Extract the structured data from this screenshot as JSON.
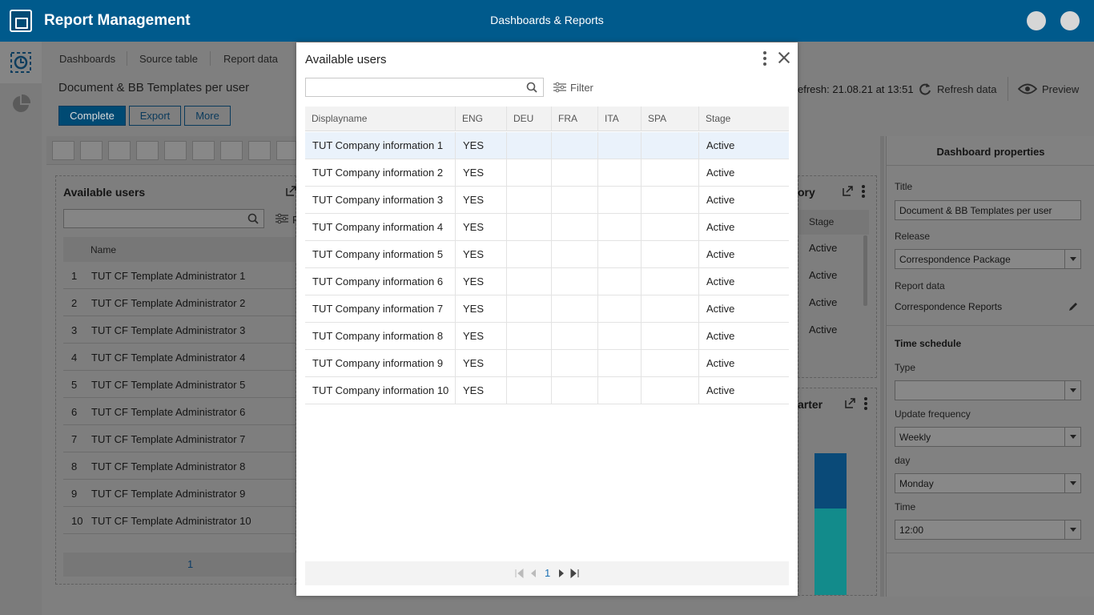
{
  "app": {
    "title": "Report Management",
    "center_title": "Dashboards & Reports"
  },
  "tabs": [
    "Dashboards",
    "Source table",
    "Report data"
  ],
  "document": {
    "title": "Document & BB Templates per user",
    "buttons": {
      "complete": "Complete",
      "export": "Export",
      "more": "More"
    },
    "last_refresh": "efresh: 21.08.21 at 13:51",
    "refresh_label": "Refresh data",
    "preview_label": "Preview"
  },
  "bg_panel": {
    "title": "Available users",
    "filter_partial": "F",
    "name_header": "Name",
    "rows": [
      {
        "num": "1",
        "name": "TUT CF Template Administrator 1"
      },
      {
        "num": "2",
        "name": "TUT CF Template Administrator 2"
      },
      {
        "num": "3",
        "name": "TUT CF Template Administrator 3"
      },
      {
        "num": "4",
        "name": "TUT CF Template Administrator 4"
      },
      {
        "num": "5",
        "name": "TUT CF Template Administrator 5"
      },
      {
        "num": "6",
        "name": "TUT CF Template Administrator 6"
      },
      {
        "num": "7",
        "name": "TUT CF Template Administrator 7"
      },
      {
        "num": "8",
        "name": "TUT CF Template Administrator 8"
      },
      {
        "num": "9",
        "name": "TUT CF Template Administrator 9"
      },
      {
        "num": "10",
        "name": "TUT CF Template Administrator 10"
      }
    ],
    "page": "1"
  },
  "bg_right": {
    "title_partial_1": "ory",
    "stage_header": "Stage",
    "stage_values": [
      "Active",
      "Active",
      "Active",
      "Active"
    ],
    "title_partial_2": "arter"
  },
  "properties": {
    "title": "Dashboard properties",
    "title_label": "Title",
    "title_value": "Document & BB Templates per user",
    "release_label": "Release",
    "release_value": "Correspondence Package",
    "report_data_label": "Report data",
    "report_data_value": "Correspondence Reports",
    "time_schedule_label": "Time schedule",
    "type_label": "Type",
    "type_value": "",
    "update_frequency_label": "Update frequency",
    "update_frequency_value": "Weekly",
    "day_label": "day",
    "day_value": "Monday",
    "time_label": "Time",
    "time_value": "12:00"
  },
  "modal": {
    "title": "Available users",
    "search_placeholder": "",
    "filter_label": "Filter",
    "columns": [
      "Displayname",
      "ENG",
      "DEU",
      "FRA",
      "ITA",
      "SPA",
      "Stage"
    ],
    "rows": [
      {
        "displayname": "TUT Company information 1",
        "eng": "YES",
        "deu": "",
        "fra": "",
        "ita": "",
        "spa": "",
        "stage": "Active"
      },
      {
        "displayname": "TUT Company information 2",
        "eng": "YES",
        "deu": "",
        "fra": "",
        "ita": "",
        "spa": "",
        "stage": "Active"
      },
      {
        "displayname": "TUT Company information 3",
        "eng": "YES",
        "deu": "",
        "fra": "",
        "ita": "",
        "spa": "",
        "stage": "Active"
      },
      {
        "displayname": "TUT Company information 4",
        "eng": "YES",
        "deu": "",
        "fra": "",
        "ita": "",
        "spa": "",
        "stage": "Active"
      },
      {
        "displayname": "TUT Company information 5",
        "eng": "YES",
        "deu": "",
        "fra": "",
        "ita": "",
        "spa": "",
        "stage": "Active"
      },
      {
        "displayname": "TUT Company information 6",
        "eng": "YES",
        "deu": "",
        "fra": "",
        "ita": "",
        "spa": "",
        "stage": "Active"
      },
      {
        "displayname": "TUT Company information 7",
        "eng": "YES",
        "deu": "",
        "fra": "",
        "ita": "",
        "spa": "",
        "stage": "Active"
      },
      {
        "displayname": "TUT Company information 8",
        "eng": "YES",
        "deu": "",
        "fra": "",
        "ita": "",
        "spa": "",
        "stage": "Active"
      },
      {
        "displayname": "TUT Company information 9",
        "eng": "YES",
        "deu": "",
        "fra": "",
        "ita": "",
        "spa": "",
        "stage": "Active"
      },
      {
        "displayname": "TUT Company information 10",
        "eng": "YES",
        "deu": "",
        "fra": "",
        "ita": "",
        "spa": "",
        "stage": "Active"
      }
    ],
    "page": "1"
  },
  "colors": {
    "brand": "#005a8c",
    "selected_row": "#eaf2fb",
    "chart_teal": "#14a0a0",
    "chart_blue": "#0a5e9c"
  }
}
